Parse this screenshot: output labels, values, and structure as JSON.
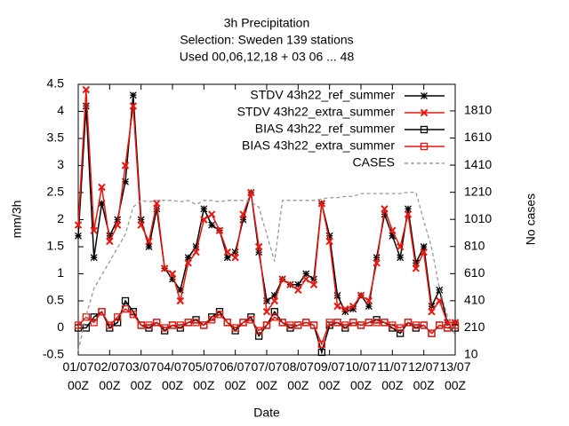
{
  "chart_data": {
    "type": "line",
    "title": "3h Precipitation",
    "subtitle": "Selection: Sweden    139 stations",
    "subtitle2": "Used  00,06,12,18  + 03 06 ... 48",
    "x_label": "Date",
    "y_label": "mm/3h",
    "y2_label": "No cases",
    "x": [
      0,
      6,
      12,
      18,
      24,
      30,
      36,
      42,
      48,
      54,
      60,
      66,
      72,
      78,
      84,
      90,
      96,
      102,
      108,
      114,
      120,
      126,
      132,
      138,
      144,
      150,
      156,
      162,
      168,
      174,
      180,
      186,
      192,
      198,
      204,
      210,
      216,
      222,
      228,
      234,
      240,
      246,
      252,
      258,
      264,
      270,
      276,
      282,
      288
    ],
    "xlim": [
      0,
      288
    ],
    "xticks": [
      {
        "value": 0,
        "label": "01/07 00Z"
      },
      {
        "value": 24,
        "label": "02/07 00Z"
      },
      {
        "value": 48,
        "label": "03/07 00Z"
      },
      {
        "value": 72,
        "label": "04/07 00Z"
      },
      {
        "value": 96,
        "label": "05/07 00Z"
      },
      {
        "value": 120,
        "label": "06/07 00Z"
      },
      {
        "value": 144,
        "label": "07/07 00Z"
      },
      {
        "value": 168,
        "label": "08/07 00Z"
      },
      {
        "value": 192,
        "label": "09/07 00Z"
      },
      {
        "value": 216,
        "label": "10/07 00Z"
      },
      {
        "value": 240,
        "label": "11/07 00Z"
      },
      {
        "value": 264,
        "label": "12/07 00Z"
      },
      {
        "value": 288,
        "label": "13/07 00Z"
      }
    ],
    "ylim": [
      -0.5,
      4.5
    ],
    "yticks": [
      -0.5,
      0,
      0.5,
      1,
      1.5,
      2,
      2.5,
      3,
      3.5,
      4,
      4.5
    ],
    "y2lim": [
      10,
      2006
    ],
    "y2ticks": [
      10,
      210,
      410,
      610,
      810,
      1010,
      1210,
      1410,
      1610,
      1810
    ],
    "legend": "top-right",
    "series": [
      {
        "name": "STDV 43h22_ref_summer",
        "color": "#000000",
        "marker": "star",
        "values": [
          1.7,
          4.1,
          1.3,
          2.3,
          1.7,
          2.0,
          2.7,
          4.3,
          2.0,
          1.5,
          2.2,
          1.1,
          0.9,
          0.7,
          1.3,
          1.5,
          2.2,
          1.9,
          1.8,
          1.3,
          1.4,
          2.0,
          2.5,
          1.4,
          0.5,
          0.6,
          0.9,
          0.8,
          0.8,
          1.0,
          0.9,
          2.3,
          1.7,
          0.6,
          0.3,
          0.35,
          0.6,
          0.4,
          1.3,
          2.1,
          1.7,
          1.3,
          2.2,
          1.2,
          1.5,
          0.4,
          0.7,
          0.1,
          0.1
        ]
      },
      {
        "name": "STDV 43h22_extra_summer",
        "color": "#e8170f",
        "marker": "x",
        "values": [
          1.9,
          4.4,
          1.8,
          2.6,
          1.6,
          1.9,
          3.0,
          4.1,
          1.9,
          1.6,
          2.3,
          1.1,
          1.0,
          0.5,
          1.2,
          1.4,
          2.0,
          2.1,
          1.8,
          1.4,
          1.3,
          2.1,
          2.5,
          1.5,
          0.3,
          0.5,
          0.9,
          0.8,
          0.7,
          0.9,
          0.8,
          2.3,
          1.6,
          0.4,
          0.35,
          0.4,
          0.6,
          0.5,
          1.2,
          2.2,
          1.8,
          1.5,
          2.1,
          1.1,
          1.4,
          0.3,
          0.5,
          0.1,
          0.1
        ]
      },
      {
        "name": "BIAS 43h22_ref_summer",
        "color": "#000000",
        "marker": "square",
        "values": [
          0.0,
          0.0,
          0.2,
          0.3,
          0.0,
          0.1,
          0.5,
          0.3,
          0.05,
          0.0,
          0.1,
          -0.05,
          0.05,
          0.0,
          0.1,
          0.15,
          0.05,
          0.2,
          0.3,
          0.1,
          -0.05,
          0.1,
          0.2,
          -0.15,
          0.05,
          0.3,
          0.1,
          0.0,
          0.05,
          0.1,
          0.05,
          -0.45,
          0.05,
          0.1,
          0.0,
          0.1,
          0.05,
          0.1,
          0.15,
          0.1,
          0.0,
          -0.1,
          0.1,
          0.0,
          0.05,
          -0.1,
          0.05,
          0.0,
          0.0
        ]
      },
      {
        "name": "BIAS 43h22_extra_summer",
        "color": "#e8170f",
        "marker": "square",
        "values": [
          0.05,
          0.2,
          0.1,
          0.3,
          0.05,
          0.2,
          0.35,
          0.25,
          0.05,
          0.05,
          0.1,
          0.0,
          0.05,
          0.05,
          0.1,
          0.1,
          0.05,
          0.15,
          0.25,
          0.1,
          0.0,
          0.1,
          0.15,
          -0.05,
          0.05,
          0.2,
          0.1,
          0.05,
          0.05,
          0.1,
          0.05,
          -0.3,
          0.1,
          0.1,
          0.05,
          0.1,
          0.05,
          0.1,
          0.1,
          0.1,
          0.05,
          0.0,
          0.1,
          0.05,
          0.05,
          -0.1,
          0.05,
          0.0,
          0.05
        ]
      },
      {
        "name": "CASES",
        "color": "#999999",
        "marker": "none",
        "dash": true,
        "axis": "y2",
        "values": [
          40,
          300,
          500,
          600,
          700,
          800,
          900,
          1100,
          1150,
          1140,
          1150,
          1150,
          1150,
          1140,
          1150,
          1120,
          1150,
          1150,
          1140,
          1150,
          1150,
          1150,
          1140,
          1100,
          900,
          700,
          1150,
          1150,
          1150,
          1150,
          1150,
          1160,
          1170,
          1170,
          1180,
          1180,
          1200,
          1200,
          1200,
          1200,
          1200,
          1200,
          1210,
          1210,
          1000,
          800,
          500,
          300,
          150
        ]
      }
    ]
  }
}
